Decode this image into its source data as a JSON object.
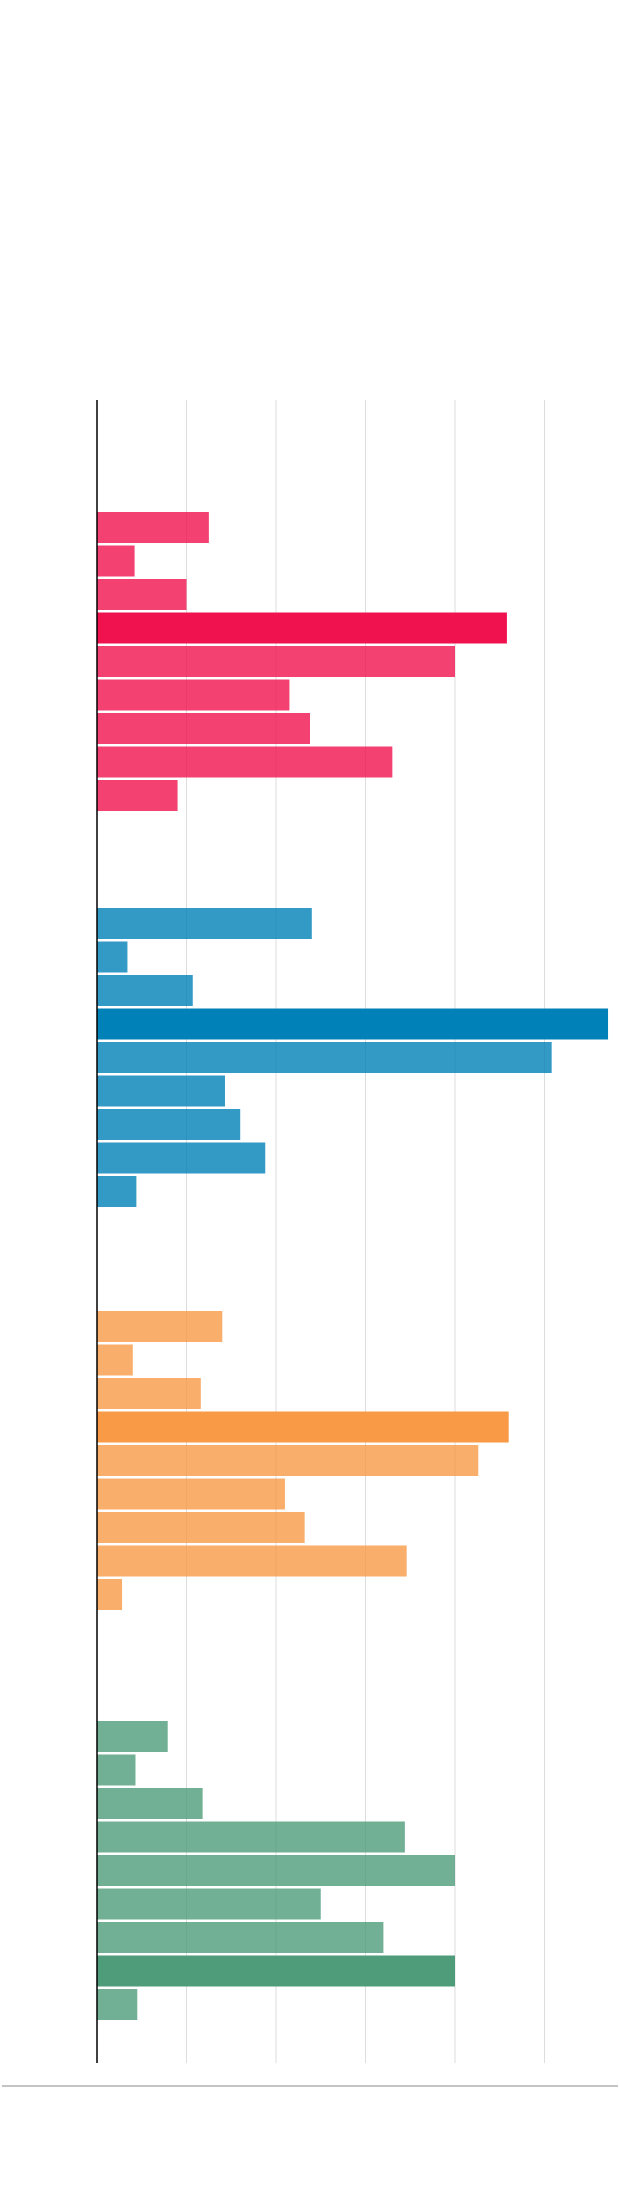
{
  "chart_data": {
    "type": "bar",
    "orientation": "horizontal",
    "title": "",
    "xlabel": "",
    "ylabel": "",
    "xlim": [
      0,
      5.7
    ],
    "grid": true,
    "legend": "none",
    "groups": [
      {
        "color": "#f0124f",
        "values": [
          1.25,
          0.42,
          1.0,
          4.58,
          4.0,
          2.15,
          2.38,
          3.3,
          0.9
        ],
        "highlight_index": 3
      },
      {
        "color": "#0081b8",
        "values": [
          2.4,
          0.34,
          1.07,
          5.71,
          5.08,
          1.43,
          1.6,
          1.88,
          0.44
        ],
        "highlight_index": 3
      },
      {
        "color": "#f89a46",
        "values": [
          1.4,
          0.4,
          1.16,
          4.6,
          4.26,
          2.1,
          2.32,
          3.46,
          0.28
        ],
        "highlight_index": 3
      },
      {
        "color": "#4f9c7b",
        "values": [
          0.79,
          0.43,
          1.18,
          3.44,
          4.0,
          2.5,
          3.2,
          4.0,
          0.45
        ],
        "highlight_index": 7
      }
    ]
  }
}
